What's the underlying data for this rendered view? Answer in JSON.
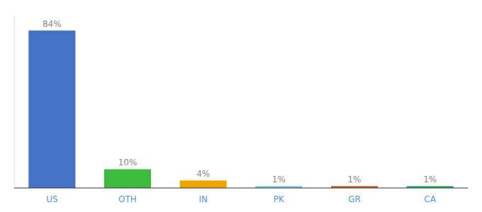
{
  "chart_data": {
    "type": "bar",
    "categories": [
      "US",
      "OTH",
      "IN",
      "PK",
      "GR",
      "CA"
    ],
    "values": [
      84,
      10,
      4,
      1,
      1,
      1
    ],
    "value_labels": [
      "84%",
      "10%",
      "4%",
      "1%",
      "1%",
      "1%"
    ],
    "colors": [
      "#4472c4",
      "#3dbb3d",
      "#f0a500",
      "#7ec8e3",
      "#c06030",
      "#27ae60"
    ],
    "ylim": [
      0,
      92
    ],
    "data_labels": true,
    "tick_labels": "x",
    "grid": false
  }
}
